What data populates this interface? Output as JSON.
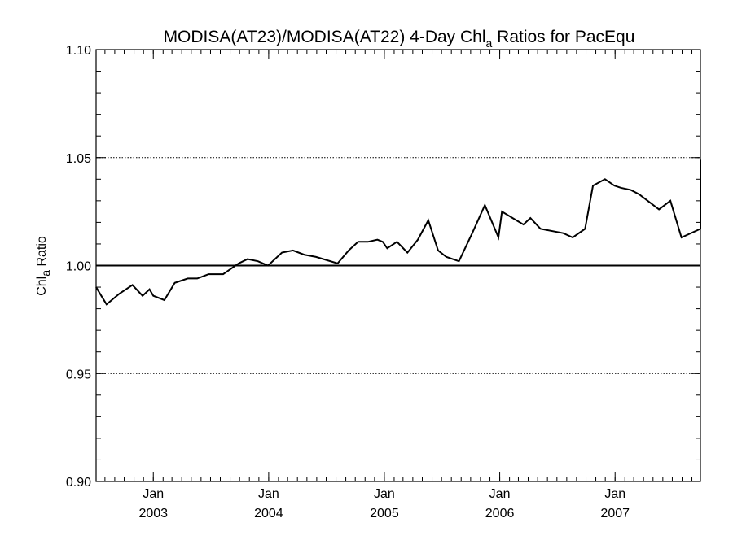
{
  "chart_data": {
    "type": "line",
    "title": {
      "prefix": "MODISA(AT23)/MODISA(AT22) 4-Day Chl",
      "subscript": "a",
      "suffix": " Ratios for PacEqu"
    },
    "ylabel": {
      "main": "Chl",
      "subscript": "a",
      "suffix": " Ratio"
    },
    "xlabel": "",
    "xlim": [
      "2002-07-04",
      "2007-09-28"
    ],
    "ylim": [
      0.9,
      1.1
    ],
    "y_ticks": [
      {
        "value": 0.9,
        "label": "0.90"
      },
      {
        "value": 0.95,
        "label": "0.95"
      },
      {
        "value": 1.0,
        "label": "1.00"
      },
      {
        "value": 1.05,
        "label": "1.05"
      },
      {
        "value": 1.1,
        "label": "1.10"
      }
    ],
    "x_ticks": [
      {
        "date": "2003-01-01",
        "month": "Jan",
        "year": "2003"
      },
      {
        "date": "2004-01-01",
        "month": "Jan",
        "year": "2004"
      },
      {
        "date": "2005-01-01",
        "month": "Jan",
        "year": "2005"
      },
      {
        "date": "2006-01-01",
        "month": "Jan",
        "year": "2006"
      },
      {
        "date": "2007-01-01",
        "month": "Jan",
        "year": "2007"
      }
    ],
    "gridlines_y": [
      0.95,
      1.05,
      1.1
    ],
    "reference_line": 1.0,
    "series": [
      {
        "x": [
          "2002-07-04",
          "2002-08-06",
          "2002-09-16",
          "2002-10-27",
          "2002-11-28",
          "2002-12-20",
          "2003-01-01",
          "2003-02-05",
          "2003-03-10",
          "2003-04-20",
          "2003-05-20",
          "2003-06-25",
          "2003-08-10",
          "2003-09-28",
          "2003-10-26",
          "2003-11-28",
          "2003-12-30",
          "2004-02-12",
          "2004-03-18",
          "2004-04-23",
          "2004-05-30",
          "2004-08-06",
          "2004-09-10",
          "2004-10-10",
          "2004-11-10",
          "2004-12-10",
          "2004-12-27",
          "2005-01-10",
          "2005-02-10",
          "2005-03-15",
          "2005-04-17",
          "2005-05-20",
          "2005-06-20",
          "2005-07-16",
          "2005-08-25",
          "2005-10-06",
          "2005-11-15",
          "2005-12-28",
          "2006-01-08",
          "2006-03-17",
          "2006-04-08",
          "2006-05-10",
          "2006-07-21",
          "2006-08-20",
          "2006-09-28",
          "2006-10-23",
          "2006-11-30",
          "2006-12-30",
          "2007-01-20",
          "2007-02-20",
          "2007-03-18",
          "2007-05-20",
          "2007-06-25",
          "2007-07-30",
          "2007-09-28"
        ],
        "y": [
          0.99,
          0.982,
          0.987,
          0.991,
          0.986,
          0.989,
          0.986,
          0.984,
          0.992,
          0.994,
          0.994,
          0.996,
          0.996,
          1.001,
          1.003,
          1.002,
          1.0,
          1.006,
          1.007,
          1.005,
          1.004,
          1.001,
          1.007,
          1.011,
          1.011,
          1.012,
          1.011,
          1.008,
          1.011,
          1.006,
          1.012,
          1.021,
          1.007,
          1.004,
          1.002,
          1.015,
          1.028,
          1.013,
          1.025,
          1.019,
          1.022,
          1.017,
          1.015,
          1.013,
          1.017,
          1.037,
          1.04,
          1.037,
          1.036,
          1.035,
          1.033,
          1.026,
          1.03,
          1.013,
          1.017
        ]
      }
    ]
  }
}
